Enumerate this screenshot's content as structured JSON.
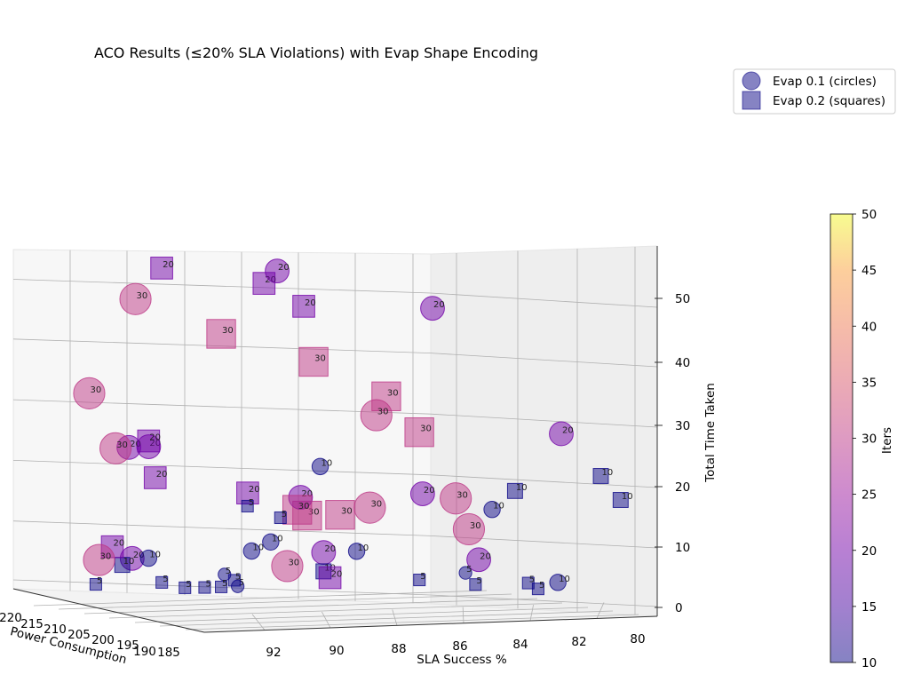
{
  "chart_data": {
    "type": "scatter",
    "projection": "3d",
    "title": "ACO Results (≤20% SLA Violations) with Evap Shape Encoding",
    "xlabel": "Power Consumption",
    "ylabel": "SLA Success %",
    "zlabel": "Total Time Taken",
    "xticks": [
      "220",
      "215",
      "210",
      "205",
      "200",
      "195",
      "190",
      "185"
    ],
    "yticks": [
      "92",
      "90",
      "88",
      "86",
      "84",
      "82",
      "80"
    ],
    "zticks": [
      "0",
      "10",
      "20",
      "30",
      "40",
      "50"
    ],
    "zlim": [
      0,
      55
    ],
    "size_encoding": "Iters",
    "color_encoding": "Iters",
    "colorbar": {
      "label": "Iters",
      "min": 10,
      "max": 50,
      "ticks": [
        "10",
        "15",
        "20",
        "25",
        "30",
        "35",
        "40",
        "45",
        "50"
      ],
      "colormap": "plasma",
      "alpha": 0.5
    },
    "legend": {
      "placement": "top-right",
      "entries": [
        {
          "label": "Evap 0.1 (circles)",
          "marker": "circle",
          "color": "#0d0887"
        },
        {
          "label": "Evap 0.2 (squares)",
          "marker": "square",
          "color": "#0d0887"
        }
      ]
    },
    "series": [
      {
        "name": "Evap 0.1 (circles)",
        "marker": "circle",
        "points": [
          {
            "sla": 89.9,
            "power": 195,
            "time": 56,
            "iters": 20
          },
          {
            "sla": 84.4,
            "power": 200,
            "time": 48,
            "iters": 20
          },
          {
            "sla": 91.0,
            "power": 215,
            "time": 48,
            "iters": 30
          },
          {
            "sla": 88.6,
            "power": 208,
            "time": 8,
            "iters": 10
          },
          {
            "sla": 81.3,
            "power": 195,
            "time": 28,
            "iters": 20
          },
          {
            "sla": 86.1,
            "power": 200,
            "time": 31,
            "iters": 30
          },
          {
            "sla": 92.4,
            "power": 210,
            "time": 25,
            "iters": 30
          },
          {
            "sla": 92.4,
            "power": 215,
            "time": 33,
            "iters": 30
          },
          {
            "sla": 91.2,
            "power": 215,
            "time": 24,
            "iters": 20
          },
          {
            "sla": 90.6,
            "power": 215,
            "time": 24,
            "iters": 20
          },
          {
            "sla": 87.8,
            "power": 200,
            "time": 23,
            "iters": 10
          },
          {
            "sla": 84.7,
            "power": 200,
            "time": 18,
            "iters": 20
          },
          {
            "sla": 83.3,
            "power": 200,
            "time": 12,
            "iters": 30
          },
          {
            "sla": 82.9,
            "power": 205,
            "time": 16,
            "iters": 30
          },
          {
            "sla": 81.8,
            "power": 205,
            "time": 14,
            "iters": 10
          },
          {
            "sla": 85.5,
            "power": 205,
            "time": 15,
            "iters": 30
          },
          {
            "sla": 86.8,
            "power": 210,
            "time": 16,
            "iters": 20
          },
          {
            "sla": 92.9,
            "power": 210,
            "time": 7,
            "iters": 30
          },
          {
            "sla": 91.4,
            "power": 210,
            "time": 7,
            "iters": 10
          },
          {
            "sla": 88.5,
            "power": 205,
            "time": 10,
            "iters": 10
          },
          {
            "sla": 88.0,
            "power": 205,
            "time": 6,
            "iters": 30
          },
          {
            "sla": 86.9,
            "power": 205,
            "time": 8,
            "iters": 20
          },
          {
            "sla": 85.9,
            "power": 205,
            "time": 8,
            "iters": 10
          },
          {
            "sla": 83.0,
            "power": 200,
            "time": 7,
            "iters": 20
          },
          {
            "sla": 84.2,
            "power": 195,
            "time": 6,
            "iters": 5
          },
          {
            "sla": 82.2,
            "power": 190,
            "time": 5,
            "iters": 10
          },
          {
            "sla": 91.1,
            "power": 215,
            "time": 6,
            "iters": 20
          },
          {
            "sla": 89.9,
            "power": 205,
            "time": 5,
            "iters": 5
          },
          {
            "sla": 89.5,
            "power": 205,
            "time": 3,
            "iters": 5
          }
        ]
      },
      {
        "name": "Evap 0.2 (squares)",
        "marker": "square",
        "points": [
          {
            "sla": 91.8,
            "power": 205,
            "time": 55,
            "iters": 20
          },
          {
            "sla": 89.5,
            "power": 200,
            "time": 53,
            "iters": 20
          },
          {
            "sla": 87.5,
            "power": 205,
            "time": 48,
            "iters": 20
          },
          {
            "sla": 90.0,
            "power": 205,
            "time": 44,
            "iters": 30
          },
          {
            "sla": 88.0,
            "power": 200,
            "time": 40,
            "iters": 30
          },
          {
            "sla": 85.8,
            "power": 200,
            "time": 34,
            "iters": 30
          },
          {
            "sla": 84.8,
            "power": 200,
            "time": 28,
            "iters": 30
          },
          {
            "sla": 91.4,
            "power": 210,
            "time": 26,
            "iters": 20
          },
          {
            "sla": 91.2,
            "power": 210,
            "time": 20,
            "iters": 20
          },
          {
            "sla": 88.4,
            "power": 210,
            "time": 17,
            "iters": 20
          },
          {
            "sla": 91.7,
            "power": 215,
            "time": 8,
            "iters": 20
          },
          {
            "sla": 91.4,
            "power": 215,
            "time": 5,
            "iters": 10
          },
          {
            "sla": 86.4,
            "power": 205,
            "time": 14,
            "iters": 30
          },
          {
            "sla": 86.9,
            "power": 210,
            "time": 14,
            "iters": 30
          },
          {
            "sla": 86.6,
            "power": 210,
            "time": 13,
            "iters": 30
          },
          {
            "sla": 88.3,
            "power": 195,
            "time": 6,
            "iters": 20
          },
          {
            "sla": 87.7,
            "power": 200,
            "time": 6,
            "iters": 10
          },
          {
            "sla": 80.9,
            "power": 190,
            "time": 22,
            "iters": 10
          },
          {
            "sla": 80.3,
            "power": 190,
            "time": 18,
            "iters": 10
          },
          {
            "sla": 82.7,
            "power": 195,
            "time": 19,
            "iters": 10
          },
          {
            "sla": 90.0,
            "power": 200,
            "time": 17,
            "iters": 5
          },
          {
            "sla": 89.8,
            "power": 195,
            "time": 16,
            "iters": 5
          },
          {
            "sla": 91.0,
            "power": 210,
            "time": 3,
            "iters": 5
          },
          {
            "sla": 90.0,
            "power": 205,
            "time": 3,
            "iters": 5
          },
          {
            "sla": 90.5,
            "power": 205,
            "time": 3,
            "iters": 5
          },
          {
            "sla": 92.2,
            "power": 215,
            "time": 2,
            "iters": 5
          },
          {
            "sla": 84.0,
            "power": 205,
            "time": 3,
            "iters": 5
          },
          {
            "sla": 83.1,
            "power": 200,
            "time": 3,
            "iters": 5
          },
          {
            "sla": 82.3,
            "power": 195,
            "time": 4,
            "iters": 5
          },
          {
            "sla": 82.0,
            "power": 195,
            "time": 3,
            "iters": 5
          },
          {
            "sla": 90.3,
            "power": 210,
            "time": 2,
            "iters": 5
          },
          {
            "sla": 89.6,
            "power": 205,
            "time": 4,
            "iters": 5
          }
        ]
      }
    ]
  }
}
